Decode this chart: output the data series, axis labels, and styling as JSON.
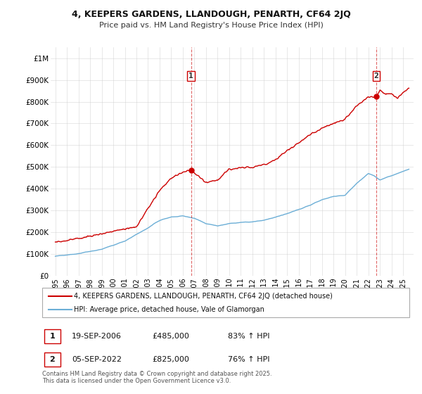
{
  "title_line1": "4, KEEPERS GARDENS, LLANDOUGH, PENARTH, CF64 2JQ",
  "title_line2": "Price paid vs. HM Land Registry's House Price Index (HPI)",
  "ylim": [
    0,
    1050000
  ],
  "yticks": [
    0,
    100000,
    200000,
    300000,
    400000,
    500000,
    600000,
    700000,
    800000,
    900000,
    1000000
  ],
  "ytick_labels": [
    "£0",
    "£100K",
    "£200K",
    "£300K",
    "£400K",
    "£500K",
    "£600K",
    "£700K",
    "£800K",
    "£900K",
    "£1M"
  ],
  "hpi_color": "#6baed6",
  "price_color": "#cc0000",
  "marker1_label": "1",
  "marker2_label": "2",
  "annotation1_date": "19-SEP-2006",
  "annotation1_price": "£485,000",
  "annotation1_hpi": "83% ↑ HPI",
  "annotation2_date": "05-SEP-2022",
  "annotation2_price": "£825,000",
  "annotation2_hpi": "76% ↑ HPI",
  "legend_label1": "4, KEEPERS GARDENS, LLANDOUGH, PENARTH, CF64 2JQ (detached house)",
  "legend_label2": "HPI: Average price, detached house, Vale of Glamorgan",
  "footnote": "Contains HM Land Registry data © Crown copyright and database right 2025.\nThis data is licensed under the Open Government Licence v3.0.",
  "bg_color": "#ffffff",
  "grid_color": "#cccccc",
  "vline1_x": 2006.72,
  "vline2_x": 2022.68,
  "marker1_y": 485000,
  "marker2_y": 825000,
  "sale1_x": 2006.72,
  "sale2_x": 2022.68,
  "xlim_left": 1994.6,
  "xlim_right": 2025.9
}
